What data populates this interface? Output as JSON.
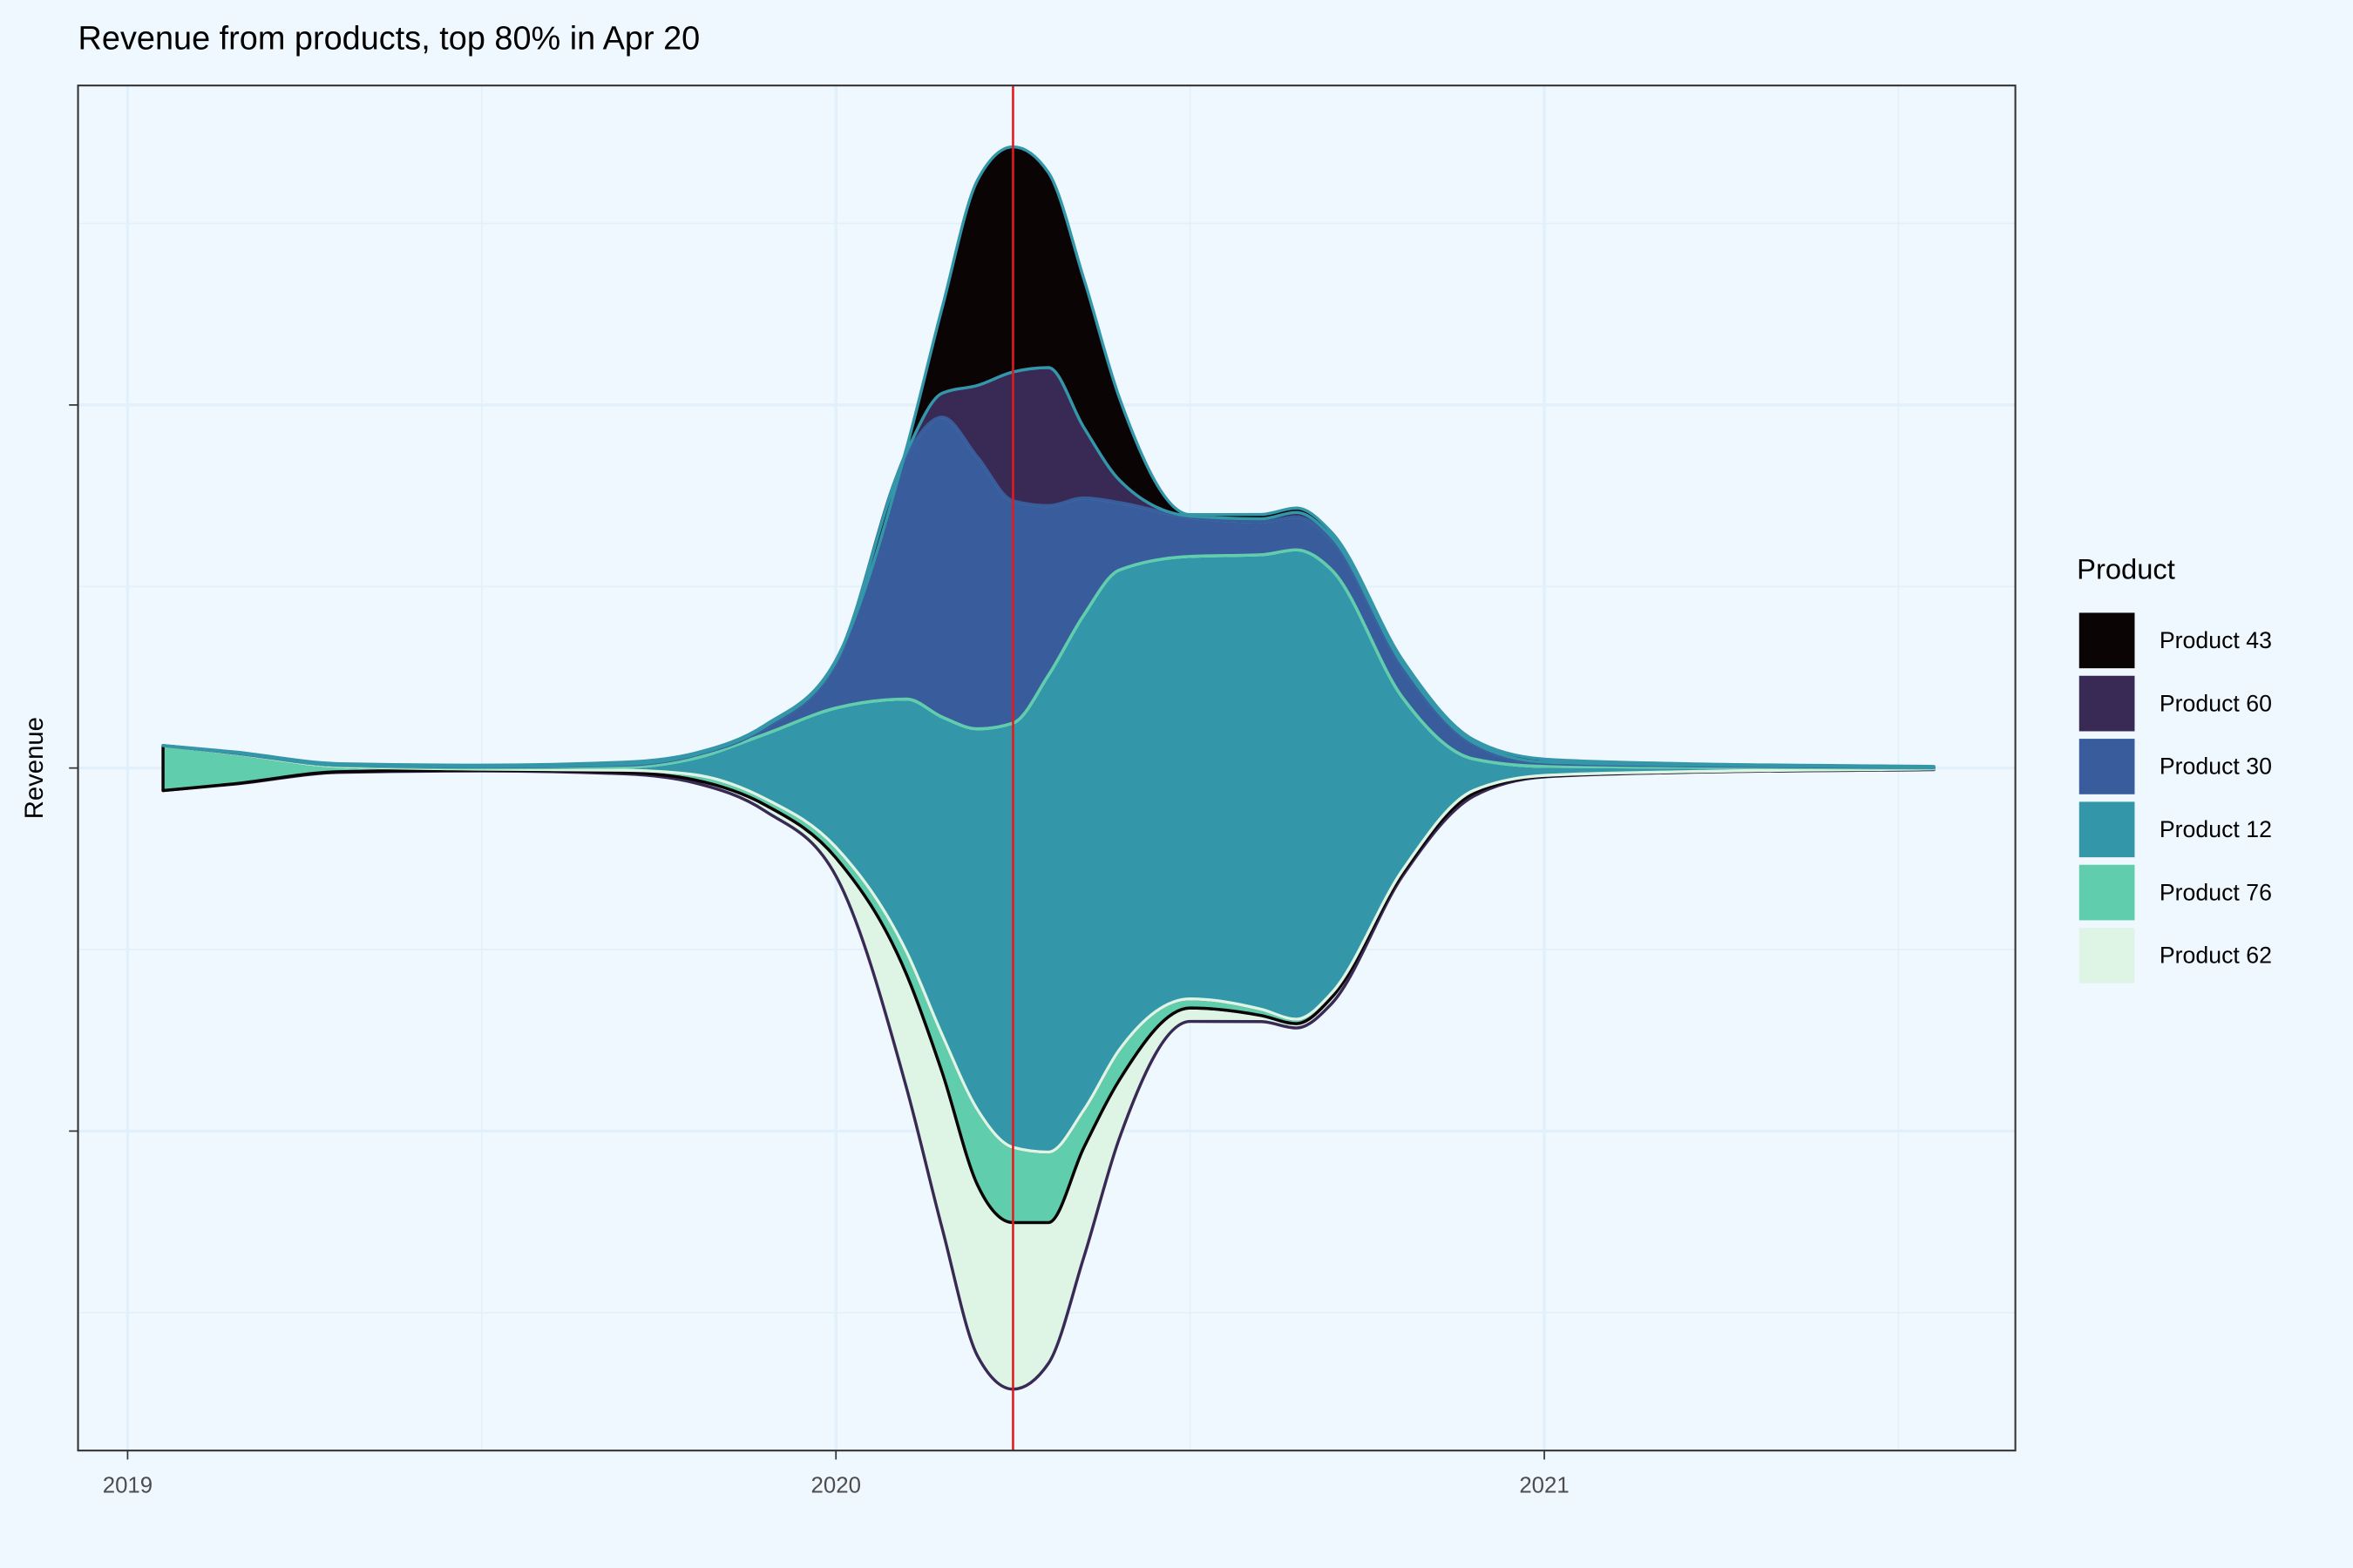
{
  "chart_data": {
    "type": "streamgraph",
    "title": "Revenue from products, top 80% in Apr 20",
    "y_label": "Revenue",
    "legend_title": "Product",
    "legend": "right",
    "grid": true,
    "xlim": [
      2018.93,
      2021.665
    ],
    "xticks": [
      2019,
      2020,
      2021
    ],
    "ylim": [
      -188,
      188
    ],
    "yticks": [
      -100,
      0,
      100
    ],
    "vline": {
      "x": 2020.25,
      "color": "#e41a1c"
    },
    "x": [
      2019.05,
      2019.15,
      2019.3,
      2019.5,
      2019.7,
      2019.8,
      2019.9,
      2020.0,
      2020.1,
      2020.15,
      2020.2,
      2020.25,
      2020.3,
      2020.35,
      2020.4,
      2020.5,
      2020.6,
      2020.65,
      2020.7,
      2020.8,
      2020.9,
      2021.0,
      2021.2,
      2021.55
    ],
    "series": [
      {
        "name": "Product 43",
        "color": "#0a0405",
        "outline_color": "#3497a9",
        "values": [
          0,
          0.2,
          0.4,
          0.4,
          0.6,
          0.4,
          0.4,
          0.4,
          1.2,
          23.6,
          56.6,
          62.0,
          53.7,
          40.9,
          22.7,
          0.4,
          1.2,
          1.2,
          1.2,
          1.2,
          0.8,
          0.8,
          0.4,
          0.2
        ]
      },
      {
        "name": "Product 60",
        "color": "#382a54",
        "outline_color": "#395d9c",
        "values": [
          0,
          0.1,
          0,
          0.1,
          0.2,
          0.2,
          0.4,
          0.4,
          0.8,
          6.6,
          19.8,
          35.5,
          38.0,
          19.4,
          6.2,
          0.4,
          0.8,
          1.2,
          0.8,
          0.8,
          0.4,
          0.4,
          0.2,
          0.1
        ]
      },
      {
        "name": "Product 30",
        "color": "#395d9c",
        "outline_color": "#60ceac",
        "values": [
          0,
          0.1,
          0.2,
          0.3,
          0.6,
          0.8,
          1.7,
          12.4,
          67.4,
          82.6,
          74.8,
          61.2,
          46.7,
          32.2,
          18.6,
          10.7,
          9.1,
          9.1,
          8.3,
          8.3,
          4.1,
          0.8,
          0.4,
          0.2
        ]
      },
      {
        "name": "Product 12",
        "color": "#3497a9",
        "outline_color": "#def5e5",
        "values": [
          0,
          0.1,
          0.2,
          0.3,
          0.8,
          4.5,
          17.8,
          38.4,
          69.8,
          87.6,
          105.0,
          116.9,
          131.4,
          136.4,
          132.2,
          121.9,
          125.2,
          129.3,
          116.5,
          47.5,
          8.7,
          2.5,
          1.2,
          0.2
        ]
      },
      {
        "name": "Product 76",
        "color": "#60ceac",
        "outline_color": "#0a0405",
        "values": [
          12.4,
          8.3,
          1.4,
          0.3,
          0.6,
          1.4,
          1.7,
          2.9,
          6.2,
          10.3,
          20.7,
          20.7,
          19.4,
          10.3,
          8.3,
          2.5,
          1.7,
          1.2,
          1.2,
          0.8,
          0.8,
          0.2,
          0.1,
          0.1
        ]
      },
      {
        "name": "Product 62",
        "color": "#def5e5",
        "outline_color": "#382a54",
        "values": [
          0,
          0.1,
          0.2,
          0.2,
          0.4,
          0.8,
          1.7,
          5.0,
          31.4,
          43.0,
          47.1,
          45.9,
          38.8,
          30.2,
          16.1,
          3.7,
          1.7,
          1.2,
          1.7,
          0.8,
          0.8,
          0.2,
          0.1,
          0.1
        ]
      }
    ]
  }
}
